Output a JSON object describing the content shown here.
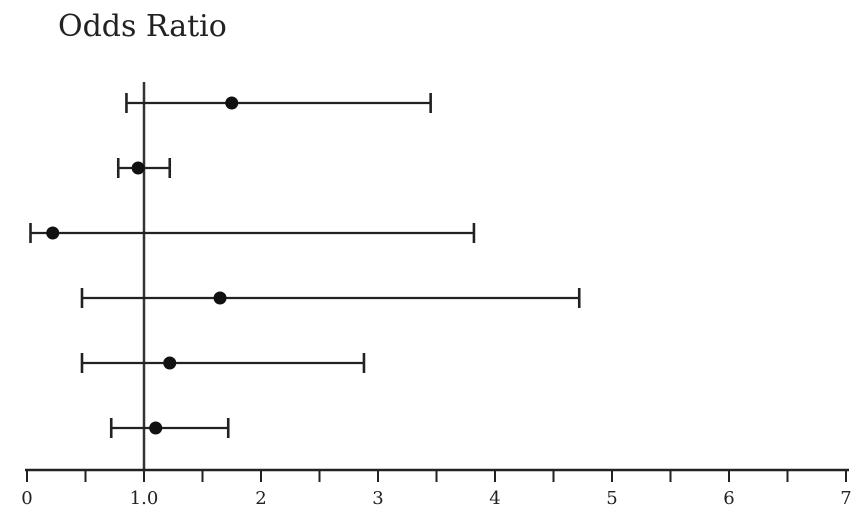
{
  "chart_data": {
    "type": "forest",
    "title": "Odds Ratio",
    "xlim": [
      0,
      7
    ],
    "x_tick_labels": [
      "0",
      "1.0",
      "2",
      "3",
      "4",
      "5",
      "6",
      "7"
    ],
    "x_tick_values": [
      0,
      1,
      2,
      3,
      4,
      5,
      6,
      7
    ],
    "minor_ticks": [
      0.5,
      1.5,
      2.5,
      3.5,
      4.5,
      5.5,
      6.5
    ],
    "reference_line": 1.0,
    "rows": [
      {
        "estimate": 1.75,
        "lower": 0.85,
        "upper": 3.45
      },
      {
        "estimate": 0.95,
        "lower": 0.78,
        "upper": 1.22
      },
      {
        "estimate": 0.22,
        "lower": 0.03,
        "upper": 3.82
      },
      {
        "estimate": 1.65,
        "lower": 0.47,
        "upper": 4.72
      },
      {
        "estimate": 1.22,
        "lower": 0.47,
        "upper": 2.88
      },
      {
        "estimate": 1.1,
        "lower": 0.72,
        "upper": 1.72
      }
    ]
  }
}
